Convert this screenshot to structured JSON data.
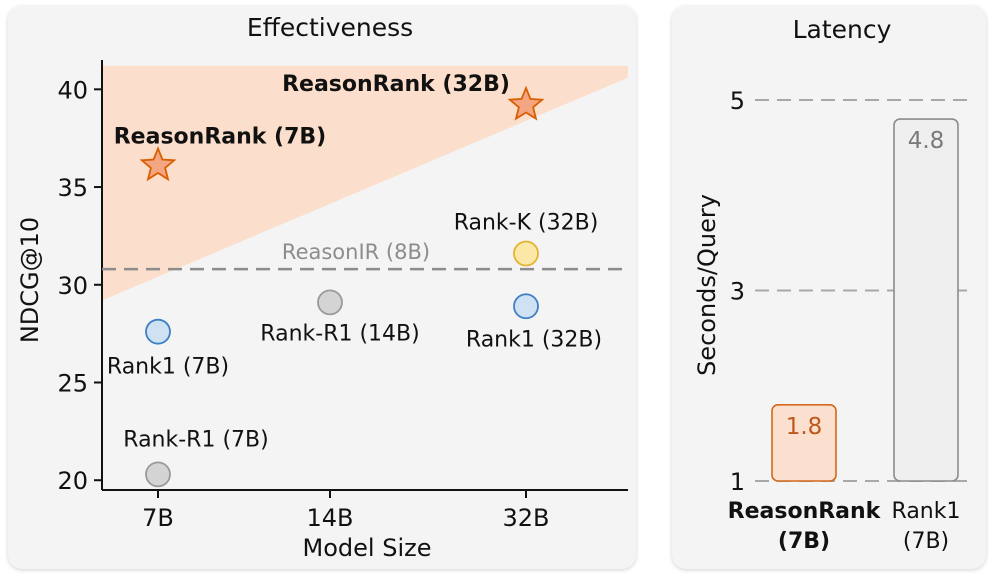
{
  "chart_data": [
    {
      "type": "scatter",
      "title": "Effectiveness",
      "xlabel": "Model Size",
      "ylabel": "NDCG@10",
      "categories": [
        "7B",
        "14B",
        "32B"
      ],
      "yticks": [
        "20",
        "25",
        "30",
        "35",
        "40"
      ],
      "ylim": [
        19.5,
        41.5
      ],
      "grid": false,
      "points": [
        {
          "label": "ReasonRank (7B)",
          "x": "7B",
          "y": 36.1,
          "marker": "star",
          "color": "#f4a582",
          "stroke": "#d95f02",
          "bold": true,
          "label_color": "#111111"
        },
        {
          "label": "ReasonRank (32B)",
          "x": "32B",
          "y": 39.2,
          "marker": "star",
          "color": "#f4a582",
          "stroke": "#d95f02",
          "bold": true,
          "label_color": "#111111"
        },
        {
          "label": "Rank-K (32B)",
          "x": "32B",
          "y": 31.6,
          "marker": "circle",
          "color": "#fbe7a6",
          "stroke": "#e2b431",
          "bold": false,
          "label_color": "#111111"
        },
        {
          "label": "Rank1 (7B)",
          "x": "7B",
          "y": 27.6,
          "marker": "circle",
          "color": "#cfe2f3",
          "stroke": "#3f7fc4",
          "bold": false,
          "label_color": "#111111"
        },
        {
          "label": "Rank-R1 (14B)",
          "x": "14B",
          "y": 29.1,
          "marker": "circle",
          "color": "#d4d4d4",
          "stroke": "#9a9a9a",
          "bold": false,
          "label_color": "#111111"
        },
        {
          "label": "Rank1 (32B)",
          "x": "32B",
          "y": 28.9,
          "marker": "circle",
          "color": "#cfe2f3",
          "stroke": "#3f7fc4",
          "bold": false,
          "label_color": "#111111"
        },
        {
          "label": "Rank-R1 (7B)",
          "x": "7B",
          "y": 20.3,
          "marker": "circle",
          "color": "#d4d4d4",
          "stroke": "#9a9a9a",
          "bold": false,
          "label_color": "#111111"
        }
      ],
      "reference_line": {
        "label": "ReasonIR (8B)",
        "y": 30.8,
        "color": "#8c8c8c"
      },
      "shaded_region": {
        "color": "#fbd9c3"
      }
    },
    {
      "type": "bar",
      "title": "Latency",
      "ylabel": "Seconds/Query",
      "categories": [
        "ReasonRank\n(7B)",
        "Rank1\n(7B)"
      ],
      "values": [
        1.8,
        4.8
      ],
      "value_labels": [
        "1.8",
        "4.8"
      ],
      "yticks": [
        "1",
        "3",
        "5"
      ],
      "ylim": [
        1,
        5.2
      ],
      "grid": true,
      "bar_colors": [
        "#fbe0d0",
        "#efefef"
      ],
      "bar_strokes": [
        "#d2691e",
        "#8c8c8c"
      ],
      "label_colors": [
        "#c0571a",
        "#7a7a7a"
      ],
      "bold_categories": [
        true,
        false
      ]
    }
  ]
}
